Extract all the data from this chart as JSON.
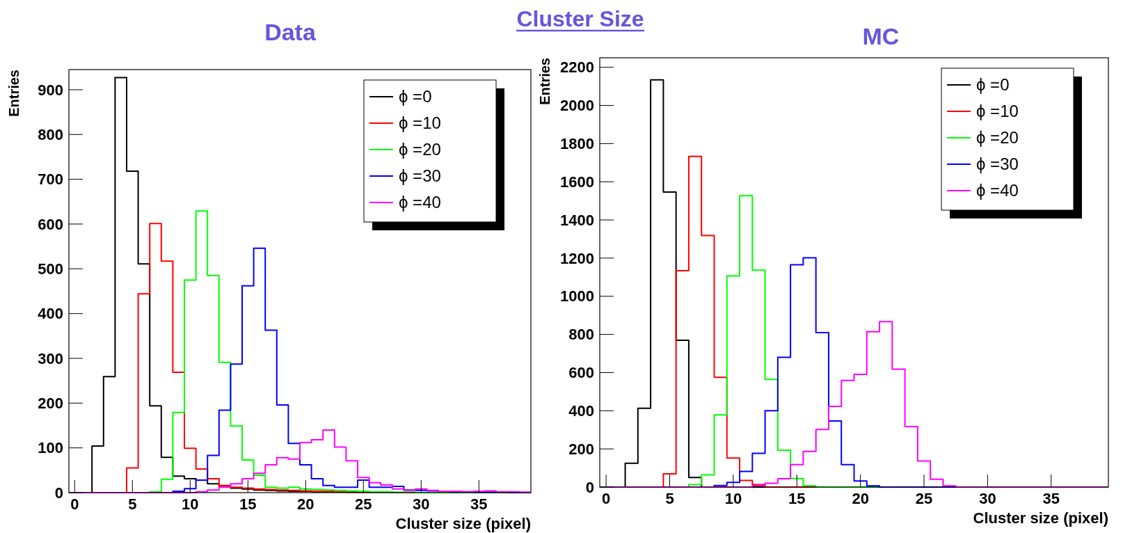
{
  "chart_data": [
    {
      "type": "histogram",
      "title": "Data",
      "annotations": [
        "Cluster Size"
      ],
      "xlabel": "Cluster size (pixel)",
      "ylabel": "Entries",
      "legend": "top right",
      "bins": [
        -0.5,
        0.5,
        1.5,
        2.5,
        3.5,
        4.5,
        5.5,
        6.5,
        7.5,
        8.5,
        9.5,
        10.5,
        11.5,
        12.5,
        13.5,
        14.5,
        15.5,
        16.5,
        17.5,
        18.5,
        19.5,
        20.5,
        21.5,
        22.5,
        23.5,
        24.5,
        25.5,
        26.5,
        27.5,
        28.5,
        29.5,
        30.5,
        31.5,
        32.5,
        33.5,
        34.5,
        35.5,
        36.5,
        37.5,
        38.5,
        39.5
      ],
      "xlim": [
        -0.5,
        39.5
      ],
      "xticks": [
        0,
        5,
        10,
        15,
        20,
        25,
        30,
        35
      ],
      "ylim": [
        0,
        945
      ],
      "yticks": [
        0,
        100,
        200,
        300,
        400,
        500,
        600,
        700,
        800,
        900
      ],
      "series": [
        {
          "name": "ϕ =0",
          "color": "#000000",
          "values": [
            0,
            0,
            104,
            259,
            927,
            718,
            511,
            194,
            79,
            37,
            31,
            28,
            20,
            15,
            10,
            8,
            6,
            5,
            4,
            3,
            3,
            2,
            2,
            2,
            1,
            1,
            1,
            1,
            0,
            0,
            0,
            0,
            0,
            0,
            0,
            0,
            0,
            0,
            0,
            0
          ]
        },
        {
          "name": "ϕ =10",
          "color": "#ff0000",
          "values": [
            0,
            0,
            0,
            0,
            0,
            55,
            444,
            601,
            517,
            269,
            99,
            53,
            31,
            16,
            12,
            10,
            8,
            7,
            6,
            5,
            4,
            3,
            3,
            2,
            2,
            1,
            1,
            1,
            0,
            0,
            0,
            0,
            0,
            0,
            0,
            0,
            0,
            0,
            0,
            0
          ]
        },
        {
          "name": "ϕ =20",
          "color": "#00ff00",
          "values": [
            0,
            0,
            0,
            0,
            0,
            0,
            0,
            2,
            30,
            179,
            475,
            629,
            485,
            291,
            149,
            73,
            39,
            12,
            10,
            12,
            8,
            7,
            6,
            5,
            4,
            3,
            2,
            2,
            1,
            1,
            0,
            0,
            0,
            0,
            0,
            0,
            0,
            0,
            0,
            0
          ]
        },
        {
          "name": "ϕ =30",
          "color": "#0000ff",
          "values": [
            0,
            0,
            0,
            0,
            0,
            0,
            0,
            0,
            0,
            3,
            9,
            28,
            83,
            184,
            287,
            462,
            546,
            363,
            196,
            110,
            62,
            31,
            16,
            12,
            12,
            28,
            12,
            12,
            14,
            6,
            5,
            4,
            3,
            2,
            2,
            1,
            1,
            1,
            0,
            0
          ]
        },
        {
          "name": "ϕ =40",
          "color": "#ff00ff",
          "values": [
            0,
            0,
            0,
            0,
            0,
            0,
            0,
            0,
            0,
            0,
            0,
            2,
            6,
            12,
            20,
            31,
            43,
            62,
            78,
            75,
            112,
            118,
            140,
            102,
            71,
            34,
            22,
            17,
            8,
            5,
            8,
            5,
            3,
            3,
            2,
            3,
            4,
            2,
            2,
            1
          ]
        }
      ]
    },
    {
      "type": "histogram",
      "title": "MC",
      "xlabel": "Cluster size (pixel)",
      "ylabel": "Entries",
      "legend": "top right",
      "bins": [
        -0.5,
        0.5,
        1.5,
        2.5,
        3.5,
        4.5,
        5.5,
        6.5,
        7.5,
        8.5,
        9.5,
        10.5,
        11.5,
        12.5,
        13.5,
        14.5,
        15.5,
        16.5,
        17.5,
        18.5,
        19.5,
        20.5,
        21.5,
        22.5,
        23.5,
        24.5,
        25.5,
        26.5,
        27.5,
        28.5,
        29.5,
        30.5,
        31.5,
        32.5,
        33.5,
        34.5,
        35.5,
        36.5,
        37.5,
        38.5,
        39.5
      ],
      "xlim": [
        -0.5,
        39.5
      ],
      "xticks": [
        0,
        5,
        10,
        15,
        20,
        25,
        30,
        35
      ],
      "ylim": [
        0,
        2250
      ],
      "yticks": [
        0,
        200,
        400,
        600,
        800,
        1000,
        1200,
        1400,
        1600,
        1800,
        2000,
        2200
      ],
      "series": [
        {
          "name": "ϕ =0",
          "color": "#000000",
          "values": [
            0,
            0,
            125,
            413,
            2134,
            1546,
            769,
            50,
            0,
            0,
            0,
            0,
            0,
            0,
            0,
            0,
            0,
            0,
            0,
            0,
            0,
            0,
            0,
            0,
            0,
            0,
            0,
            0,
            0,
            0,
            0,
            0,
            0,
            0,
            0,
            0,
            0,
            0,
            0,
            0
          ]
        },
        {
          "name": "ϕ =10",
          "color": "#ff0000",
          "values": [
            0,
            0,
            0,
            0,
            0,
            69,
            1134,
            1733,
            1318,
            575,
            152,
            35,
            13,
            0,
            0,
            0,
            0,
            0,
            0,
            0,
            0,
            0,
            0,
            0,
            0,
            0,
            0,
            0,
            0,
            0,
            0,
            0,
            0,
            0,
            0,
            0,
            0,
            0,
            0,
            0
          ]
        },
        {
          "name": "ϕ =20",
          "color": "#00ff00",
          "values": [
            0,
            0,
            0,
            0,
            0,
            0,
            0,
            13,
            64,
            378,
            1107,
            1527,
            1137,
            564,
            193,
            45,
            6,
            0,
            0,
            0,
            0,
            0,
            0,
            0,
            0,
            0,
            0,
            0,
            0,
            0,
            0,
            0,
            0,
            0,
            0,
            0,
            0,
            0,
            0,
            0
          ]
        },
        {
          "name": "ϕ =30",
          "color": "#0000ff",
          "values": [
            0,
            0,
            0,
            0,
            0,
            0,
            0,
            0,
            0,
            8,
            25,
            82,
            177,
            400,
            680,
            1165,
            1202,
            810,
            346,
            118,
            32,
            6,
            0,
            0,
            0,
            0,
            0,
            0,
            0,
            0,
            0,
            0,
            0,
            0,
            0,
            0,
            0,
            0,
            0,
            0
          ]
        },
        {
          "name": "ϕ =40",
          "color": "#ff00ff",
          "values": [
            0,
            0,
            0,
            0,
            0,
            0,
            0,
            0,
            0,
            0,
            0,
            0,
            7,
            20,
            44,
            118,
            187,
            302,
            423,
            559,
            591,
            814,
            867,
            618,
            317,
            137,
            41,
            6,
            0,
            0,
            0,
            0,
            0,
            0,
            0,
            0,
            0,
            0,
            0,
            0
          ]
        }
      ]
    }
  ]
}
